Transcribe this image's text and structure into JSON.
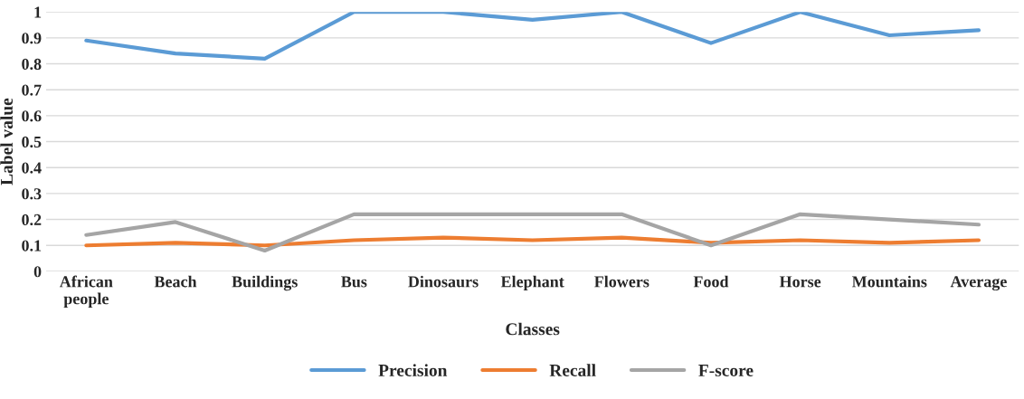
{
  "chart_data": {
    "type": "line",
    "xlabel": "Classes",
    "ylabel": "Label value",
    "categories": [
      "African\npeople",
      "Beach",
      "Buildings",
      "Bus",
      "Dinosaurs",
      "Elephant",
      "Flowers",
      "Food",
      "Horse",
      "Mountains",
      "Average"
    ],
    "series": [
      {
        "name": "Precision",
        "color": "#5b9bd5",
        "values": [
          0.89,
          0.84,
          0.82,
          1,
          1,
          0.97,
          1,
          0.88,
          1,
          0.91,
          0.93
        ]
      },
      {
        "name": "Recall",
        "color": "#ed7d31",
        "values": [
          0.1,
          0.11,
          0.1,
          0.12,
          0.13,
          0.12,
          0.13,
          0.11,
          0.12,
          0.11,
          0.12
        ]
      },
      {
        "name": "F-score",
        "color": "#a5a5a5",
        "values": [
          0.14,
          0.19,
          0.08,
          0.22,
          0.22,
          0.22,
          0.22,
          0.1,
          0.22,
          0.2,
          0.18
        ]
      }
    ],
    "ylim": [
      0,
      1
    ],
    "yticks": [
      0,
      0.1,
      0.2,
      0.3,
      0.4,
      0.5,
      0.6,
      0.7,
      0.8,
      0.9,
      1
    ],
    "grid": "y",
    "legend": "bottom",
    "marker": "none",
    "line_style": "solid"
  }
}
